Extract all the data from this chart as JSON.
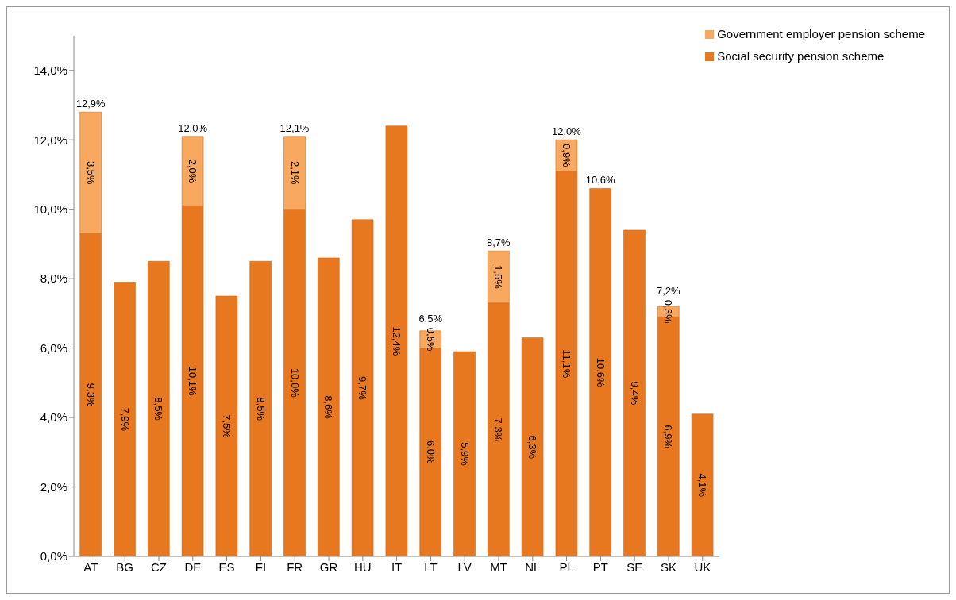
{
  "chart_data": {
    "type": "bar",
    "stacked": true,
    "categories": [
      "AT",
      "BG",
      "CZ",
      "DE",
      "ES",
      "FI",
      "FR",
      "GR",
      "HU",
      "IT",
      "LT",
      "LV",
      "MT",
      "NL",
      "PL",
      "PT",
      "SE",
      "SK",
      "UK"
    ],
    "series": [
      {
        "name": "Social security pension scheme",
        "color": "#e8781f",
        "values": [
          9.3,
          7.9,
          8.5,
          10.1,
          7.5,
          8.5,
          10.0,
          8.6,
          9.7,
          12.4,
          6.0,
          5.9,
          7.3,
          6.3,
          11.1,
          10.6,
          9.4,
          6.9,
          4.1
        ],
        "value_labels": [
          "9,3%",
          "7,9%",
          "8,5%",
          "10,1%",
          "7,5%",
          "8,5%",
          "10,0%",
          "8,6%",
          "9,7%",
          "12,4%",
          "6,0%",
          "5,9%",
          "7,3%",
          "6,3%",
          "11,1%",
          "10,6%",
          "9,4%",
          "6,9%",
          "4,1%"
        ]
      },
      {
        "name": "Government employer pension scheme",
        "color": "#f9a860",
        "values": [
          3.5,
          null,
          null,
          2.0,
          null,
          null,
          2.1,
          null,
          null,
          null,
          0.5,
          null,
          1.5,
          null,
          0.9,
          null,
          null,
          0.3,
          null
        ],
        "value_labels": [
          "3,5%",
          null,
          null,
          "2,0%",
          null,
          null,
          "2,1%",
          null,
          null,
          null,
          "0,5%",
          null,
          "1,5%",
          null,
          "0,9%",
          null,
          null,
          "0,3%",
          null
        ]
      }
    ],
    "totals": [
      "12,9%",
      null,
      null,
      "12,0%",
      null,
      null,
      "12,1%",
      null,
      null,
      null,
      "6,5%",
      null,
      "8,7%",
      null,
      "12,0%",
      "10,6%",
      null,
      "7,2%",
      null
    ],
    "ylim": [
      0,
      15
    ],
    "yticks": [
      {
        "value": 0,
        "label": "0,0%"
      },
      {
        "value": 2,
        "label": "2,0%"
      },
      {
        "value": 4,
        "label": "4,0%"
      },
      {
        "value": 6,
        "label": "6,0%"
      },
      {
        "value": 8,
        "label": "8,0%"
      },
      {
        "value": 10,
        "label": "10,0%"
      },
      {
        "value": 12,
        "label": "12,0%"
      },
      {
        "value": 14,
        "label": "14,0%"
      }
    ],
    "grid": false,
    "legend": "top right"
  }
}
